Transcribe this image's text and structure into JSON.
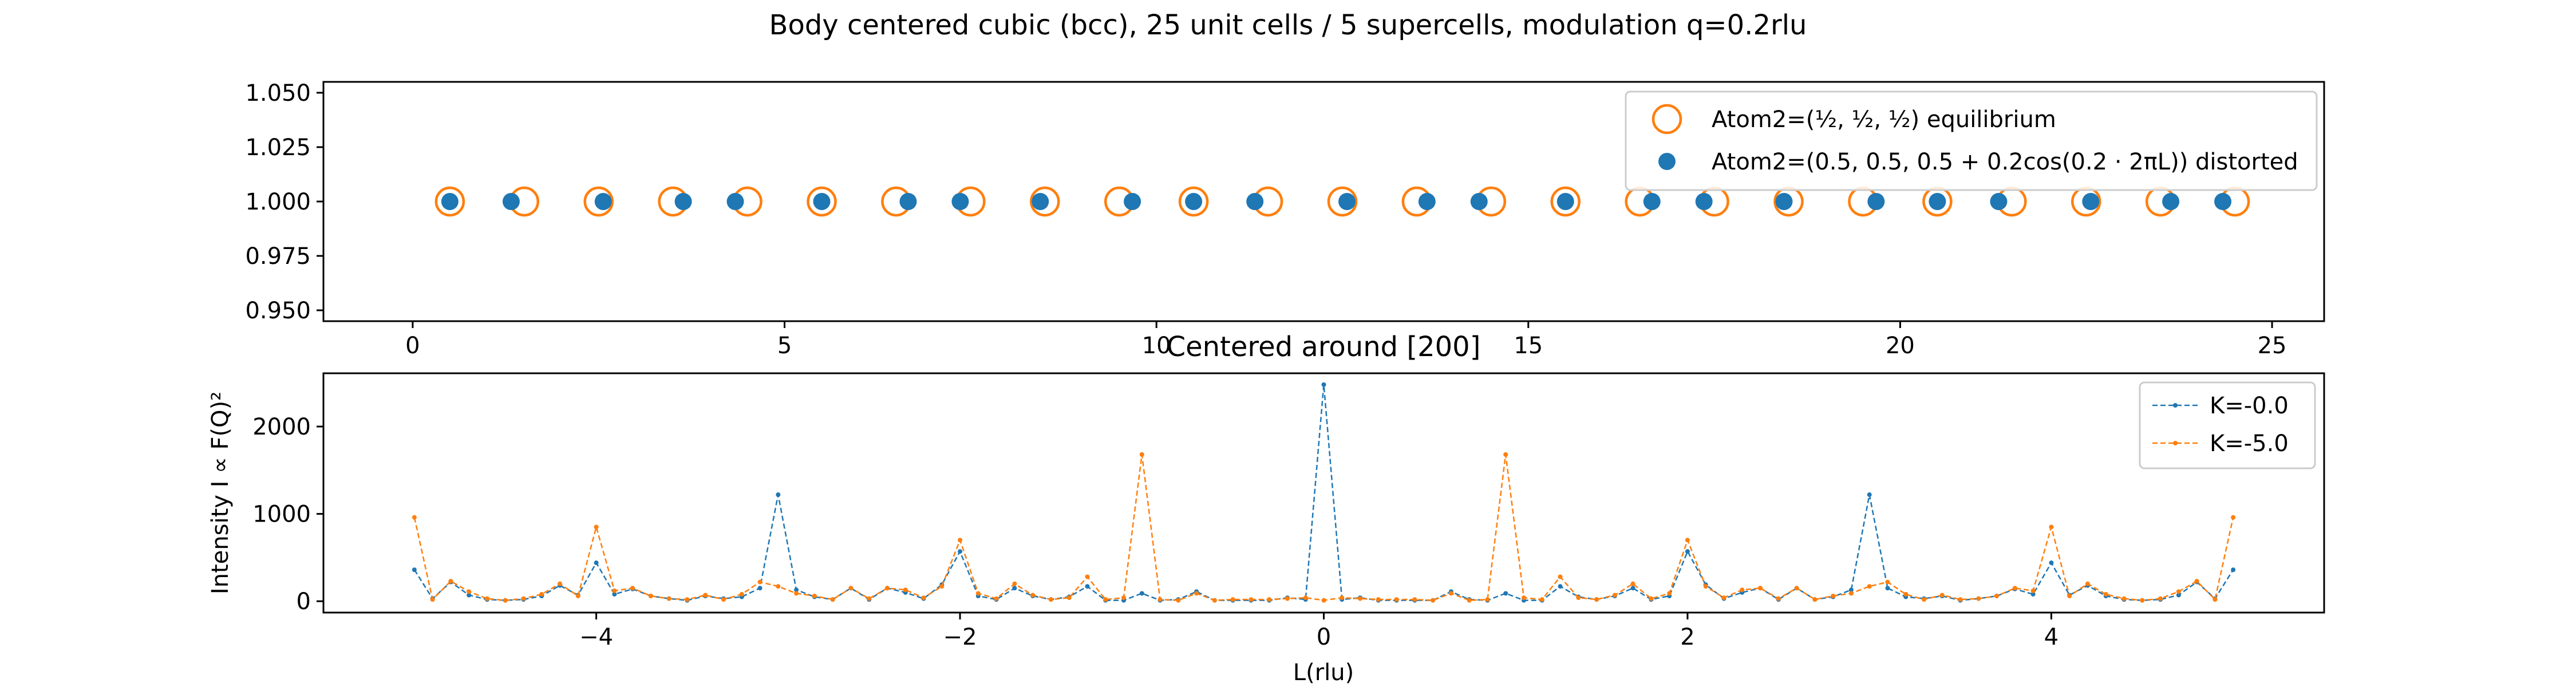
{
  "figure": {
    "suptitle": "Body centered cubic (bcc), 25 unit cells / 5 supercells, modulation q=0.2rlu"
  },
  "colors": {
    "blue": "#1f77b4",
    "orange": "#ff7f0e"
  },
  "chart_data": [
    {
      "type": "scatter",
      "title": "",
      "xlabel": "",
      "ylabel": "",
      "xlim": [
        -1.2,
        25.7
      ],
      "ylim": [
        0.945,
        1.055
      ],
      "xticks": [
        "0",
        "5",
        "10",
        "15",
        "20",
        "25"
      ],
      "yticks": [
        "0.950",
        "0.975",
        "1.000",
        "1.025",
        "1.050"
      ],
      "legend_position": "top-right",
      "series": [
        {
          "name": "Atom2=(½, ½, ½) equilibrium",
          "marker": "open-circle",
          "color": "#ff7f0e",
          "y_const": 1.0,
          "x": [
            0.5,
            1.5,
            2.5,
            3.5,
            4.5,
            5.5,
            6.5,
            7.5,
            8.5,
            9.5,
            10.5,
            11.5,
            12.5,
            13.5,
            14.5,
            15.5,
            16.5,
            17.5,
            18.5,
            19.5,
            20.5,
            21.5,
            22.5,
            23.5,
            24.5
          ]
        },
        {
          "name": "Atom2=(0.5, 0.5, 0.5 + 0.2cos(0.2 · 2πL)) distorted",
          "marker": "filled-circle",
          "color": "#1f77b4",
          "y_const": 1.0,
          "x": [
            0.5,
            1.324,
            2.562,
            3.638,
            4.338,
            5.5,
            6.662,
            7.362,
            8.438,
            9.676,
            10.5,
            11.324,
            12.562,
            13.638,
            14.338,
            15.5,
            16.662,
            17.362,
            18.438,
            19.676,
            20.5,
            21.324,
            22.562,
            23.638,
            24.338
          ]
        }
      ]
    },
    {
      "type": "line",
      "title": "Centered around [200]",
      "xlabel": "L(rlu)",
      "ylabel": "Intensity I ∝ F(Q)²",
      "xlim": [
        -5.5,
        5.5
      ],
      "ylim": [
        -130,
        2610
      ],
      "xticks": [
        "−4",
        "−2",
        "0",
        "2",
        "4"
      ],
      "yticks": [
        "0",
        "1000",
        "2000"
      ],
      "legend_position": "top-right",
      "series": [
        {
          "name": "K=-0.0",
          "color": "#1f77b4",
          "x": [
            -5.0,
            -4.9,
            -4.8,
            -4.7,
            -4.6,
            -4.5,
            -4.4,
            -4.3,
            -4.2,
            -4.1,
            -4.0,
            -3.9,
            -3.8,
            -3.7,
            -3.6,
            -3.5,
            -3.4,
            -3.3,
            -3.2,
            -3.1,
            -3.0,
            -2.9,
            -2.8,
            -2.7,
            -2.6,
            -2.5,
            -2.4,
            -2.3,
            -2.2,
            -2.1,
            -2.0,
            -1.9,
            -1.8,
            -1.7,
            -1.6,
            -1.5,
            -1.4,
            -1.3,
            -1.2,
            -1.1,
            -1.0,
            -0.9,
            -0.8,
            -0.7,
            -0.6,
            -0.5,
            -0.4,
            -0.3,
            -0.2,
            -0.1,
            0.0,
            0.1,
            0.2,
            0.3,
            0.4,
            0.5,
            0.6,
            0.7,
            0.8,
            0.9,
            1.0,
            1.1,
            1.2,
            1.3,
            1.4,
            1.5,
            1.6,
            1.7,
            1.8,
            1.9,
            2.0,
            2.1,
            2.2,
            2.3,
            2.4,
            2.5,
            2.6,
            2.7,
            2.8,
            2.9,
            3.0,
            3.1,
            3.2,
            3.3,
            3.4,
            3.5,
            3.6,
            3.7,
            3.8,
            3.9,
            4.0,
            4.1,
            4.2,
            4.3,
            4.4,
            4.5,
            4.6,
            4.7,
            4.8,
            4.9,
            5.0
          ],
          "values": [
            360,
            30,
            220,
            70,
            20,
            10,
            20,
            60,
            180,
            70,
            440,
            80,
            140,
            60,
            30,
            10,
            60,
            30,
            50,
            150,
            1220,
            130,
            50,
            20,
            150,
            20,
            150,
            100,
            30,
            190,
            570,
            60,
            20,
            150,
            60,
            20,
            50,
            170,
            10,
            10,
            90,
            10,
            20,
            110,
            10,
            10,
            10,
            10,
            40,
            20,
            2480,
            20,
            40,
            10,
            10,
            10,
            10,
            110,
            20,
            10,
            90,
            10,
            10,
            170,
            50,
            20,
            60,
            150,
            20,
            60,
            570,
            190,
            30,
            100,
            150,
            20,
            150,
            20,
            50,
            130,
            1220,
            150,
            50,
            30,
            60,
            10,
            30,
            60,
            140,
            80,
            440,
            70,
            180,
            60,
            20,
            10,
            20,
            70,
            220,
            30,
            360
          ]
        },
        {
          "name": "K=-5.0",
          "color": "#ff7f0e",
          "x": [
            -5.0,
            -4.9,
            -4.8,
            -4.7,
            -4.6,
            -4.5,
            -4.4,
            -4.3,
            -4.2,
            -4.1,
            -4.0,
            -3.9,
            -3.8,
            -3.7,
            -3.6,
            -3.5,
            -3.4,
            -3.3,
            -3.2,
            -3.1,
            -3.0,
            -2.9,
            -2.8,
            -2.7,
            -2.6,
            -2.5,
            -2.4,
            -2.3,
            -2.2,
            -2.1,
            -2.0,
            -1.9,
            -1.8,
            -1.7,
            -1.6,
            -1.5,
            -1.4,
            -1.3,
            -1.2,
            -1.1,
            -1.0,
            -0.9,
            -0.8,
            -0.7,
            -0.6,
            -0.5,
            -0.4,
            -0.3,
            -0.2,
            -0.1,
            0.0,
            0.1,
            0.2,
            0.3,
            0.4,
            0.5,
            0.6,
            0.7,
            0.8,
            0.9,
            1.0,
            1.1,
            1.2,
            1.3,
            1.4,
            1.5,
            1.6,
            1.7,
            1.8,
            1.9,
            2.0,
            2.1,
            2.2,
            2.3,
            2.4,
            2.5,
            2.6,
            2.7,
            2.8,
            2.9,
            3.0,
            3.1,
            3.2,
            3.3,
            3.4,
            3.5,
            3.6,
            3.7,
            3.8,
            3.9,
            4.0,
            4.1,
            4.2,
            4.3,
            4.4,
            4.5,
            4.6,
            4.7,
            4.8,
            4.9,
            5.0
          ],
          "values": [
            960,
            20,
            230,
            110,
            30,
            10,
            30,
            80,
            200,
            60,
            850,
            120,
            150,
            60,
            30,
            20,
            70,
            20,
            80,
            220,
            170,
            90,
            60,
            20,
            150,
            30,
            150,
            130,
            40,
            170,
            700,
            90,
            30,
            200,
            70,
            20,
            40,
            280,
            20,
            40,
            1680,
            20,
            10,
            90,
            10,
            20,
            20,
            20,
            30,
            40,
            10,
            40,
            30,
            20,
            20,
            20,
            10,
            90,
            10,
            20,
            1680,
            40,
            20,
            280,
            40,
            20,
            70,
            200,
            30,
            90,
            700,
            170,
            40,
            130,
            150,
            30,
            150,
            20,
            60,
            90,
            170,
            220,
            80,
            20,
            70,
            20,
            30,
            60,
            150,
            120,
            850,
            60,
            200,
            80,
            30,
            10,
            30,
            110,
            230,
            20,
            960
          ]
        }
      ]
    }
  ]
}
